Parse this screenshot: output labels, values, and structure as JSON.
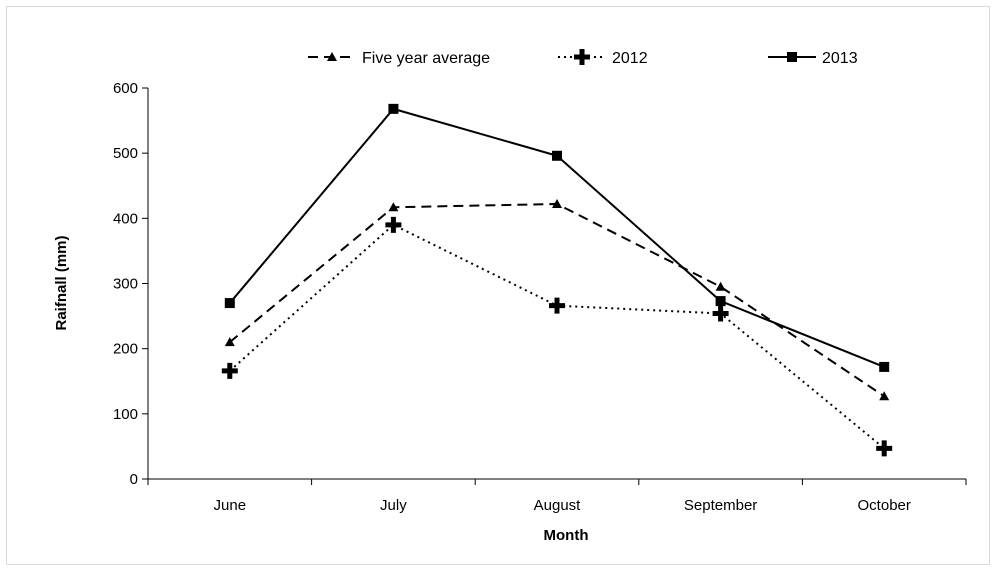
{
  "chart_data": {
    "type": "line",
    "title": "",
    "xlabel": "Month",
    "ylabel": "Raifnall (mm)",
    "ylim": [
      0,
      600
    ],
    "yticks": [
      0,
      100,
      200,
      300,
      400,
      500,
      600
    ],
    "categories": [
      "June",
      "July",
      "August",
      "September",
      "October"
    ],
    "legend_position": "top",
    "grid": false,
    "series": [
      {
        "name": "Five year average",
        "style": "dashed",
        "marker": "triangle",
        "color": "#000000",
        "values": [
          210,
          417,
          422,
          295,
          127
        ]
      },
      {
        "name": "2012",
        "style": "dotted",
        "marker": "cross",
        "color": "#000000",
        "values": [
          166,
          390,
          266,
          254,
          47
        ]
      },
      {
        "name": "2013",
        "style": "solid",
        "marker": "square",
        "color": "#000000",
        "values": [
          270,
          568,
          496,
          273,
          172
        ]
      }
    ]
  }
}
